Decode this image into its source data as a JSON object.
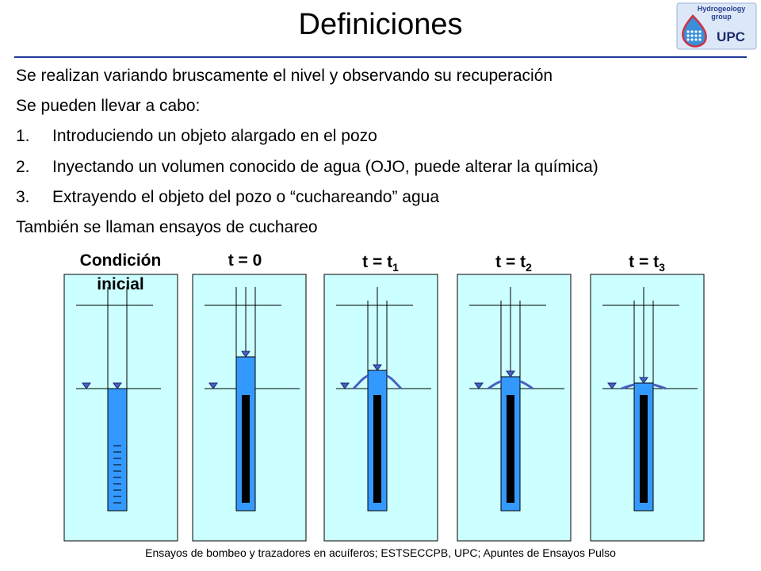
{
  "title": "Definiciones",
  "logo": {
    "line1": "Hydrogeology",
    "line2": "group",
    "name": "UPC"
  },
  "intro": "Se realizan variando bruscamente el nivel y observando su recuperación",
  "lead": "Se pueden llevar a cabo:",
  "items": [
    {
      "num": "1.",
      "text": "Introduciendo un objeto alargado en el pozo"
    },
    {
      "num": "2.",
      "text": "Inyectando un volumen conocido de agua (OJO, puede alterar la química)"
    },
    {
      "num": "3.",
      "text": "Extrayendo el objeto del pozo o “cuchareando” agua"
    }
  ],
  "closing": "También se llaman ensayos de cuchareo",
  "panels": [
    {
      "label_line1": "Condición",
      "label_line2": "inicial"
    },
    {
      "label": "t = 0"
    },
    {
      "label": "t = t",
      "sub": "1"
    },
    {
      "label": "t = t",
      "sub": "2"
    },
    {
      "label": "t = t",
      "sub": "3"
    }
  ],
  "colors": {
    "aquifer": "#ccffff",
    "water": "#3399ff",
    "object": "#000000",
    "rule": "#1e3c96",
    "marker": "#4a5fc4"
  },
  "footer": "Ensayos de bombeo y trazadores en acuíferos; ESTSECCPB, UPC; Apuntes de Ensayos Pulso"
}
